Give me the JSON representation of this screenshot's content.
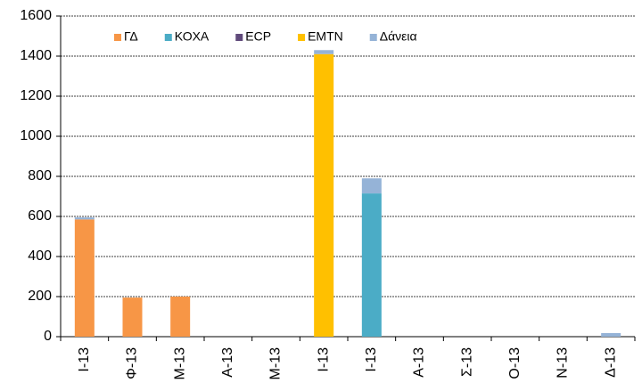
{
  "chart_data": {
    "type": "stacked_bar",
    "categories": [
      "Ι-13",
      "Φ-13",
      "Μ-13",
      "Α-13",
      "Μ-13",
      "Ι-13",
      "Ι-13",
      "Α-13",
      "Σ-13",
      "Ο-13",
      "Ν-13",
      "Δ-13"
    ],
    "series": [
      {
        "name": "ΓΔ",
        "color": "#f79646",
        "values": [
          585,
          195,
          200,
          0,
          0,
          0,
          0,
          0,
          0,
          0,
          0,
          0
        ]
      },
      {
        "name": "ΚΟΧΑ",
        "color": "#4bacc6",
        "values": [
          0,
          0,
          0,
          0,
          0,
          0,
          715,
          0,
          0,
          0,
          0,
          0
        ]
      },
      {
        "name": "ECP",
        "color": "#604a7b",
        "values": [
          0,
          0,
          0,
          0,
          0,
          0,
          0,
          0,
          0,
          0,
          0,
          0
        ]
      },
      {
        "name": "EMTN",
        "color": "#ffc000",
        "values": [
          0,
          0,
          0,
          0,
          0,
          1410,
          0,
          0,
          0,
          0,
          0,
          0
        ]
      },
      {
        "name": "Δάνεια",
        "color": "#95b3d7",
        "values": [
          10,
          0,
          0,
          0,
          0,
          20,
          75,
          0,
          0,
          0,
          0,
          18
        ]
      }
    ],
    "ylim": [
      0,
      1600
    ],
    "yticks": [
      0,
      200,
      400,
      600,
      800,
      1000,
      1200,
      1400,
      1600
    ],
    "grid": true,
    "legend": "top"
  }
}
